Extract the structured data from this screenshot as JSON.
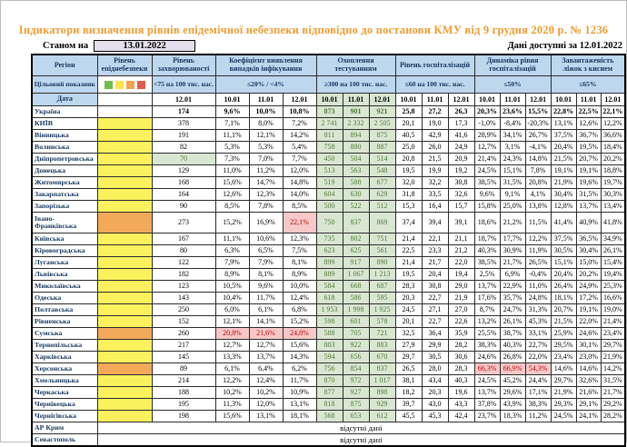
{
  "title": "Індикатори визначення рівнів епідемічної небезпеки відповідно до постанови КМУ від 9 грудня 2020 р. № 1236",
  "status": {
    "label": "Станом на",
    "date": "13.01.2022"
  },
  "available_note": "Дані доступні за 12.01.2022",
  "colors": {
    "title_text": "#EE9C31",
    "header_bg": "#BDD7EE",
    "header_text": "#17365D",
    "level_yellow": "#FBF15C",
    "level_orange": "#F3A95A",
    "testing_bg": "#D9E7D2",
    "testing_text": "#4E7A3A",
    "alert_bg": "#F6C8C8",
    "alert_text": "#C00000",
    "date_box_bg": "#E4DFEC",
    "legend_swatches": [
      "#6FBE4B",
      "#FBE44D",
      "#F2A44E",
      "#DF5C51"
    ]
  },
  "table": {
    "corner": {
      "row1": "Регіон",
      "row2": "Цільовий показник",
      "row3": "Дата"
    },
    "no_data_text": "відсутні дані",
    "groups": [
      {
        "title": "Рівень епіднебезпеки",
        "threshold": "",
        "dates": [],
        "legend": true
      },
      {
        "title": "Рівень захворюваності",
        "threshold": "<75 на 100 тис. нас.",
        "dates": [
          "12.01"
        ]
      },
      {
        "title": "Коефіцієнт виявлення випадків інфікування",
        "threshold": "≤20% / <4%",
        "dates": [
          "10.01",
          "11.01",
          "12.01"
        ]
      },
      {
        "title": "Охоплення тестуванням",
        "threshold": "≥300 на 100 тис. нас.",
        "dates": [
          "10.01",
          "11.01",
          "12.01"
        ],
        "test": true
      },
      {
        "title": "Рівень госпіталізацій",
        "threshold": "≤60 на 100 тис. нас.",
        "dates": [
          "10.01",
          "11.01",
          "12.01"
        ]
      },
      {
        "title": "Динаміка рівня госпіталізацій",
        "threshold": "≤50%",
        "dates": [
          "10.01",
          "11.01",
          "12.01"
        ]
      },
      {
        "title": "Завантаженість ліжок з киснем",
        "threshold": "≤65%",
        "dates": [
          "10.01",
          "11.01",
          "12.01"
        ]
      }
    ],
    "rows": [
      {
        "region": "Україна",
        "level": "white",
        "bold": true,
        "inc": "174",
        "coef": [
          "9,6%",
          "10,0%",
          "10,8%"
        ],
        "test": [
          "873",
          "901",
          "921"
        ],
        "hosp": [
          "25,8",
          "27,2",
          "26,3"
        ],
        "dyn": [
          "20,3%",
          "23,6%",
          "15,5%"
        ],
        "bed": [
          "22,8%",
          "22,5%",
          "22,1%"
        ]
      },
      {
        "region": "КИЇВ",
        "level": "yellow",
        "inc": "378",
        "coef": [
          "7,1%",
          "8,0%",
          "7,2%"
        ],
        "test": [
          "2 741",
          "2 332",
          "2 505"
        ],
        "hosp": [
          "20,1",
          "19,0",
          "17,3"
        ],
        "dyn": [
          "-1,0%",
          "-8,4%",
          "-20,3%"
        ],
        "bed": [
          "13,1%",
          "12,6%",
          "12,2%"
        ]
      },
      {
        "region": "Вінницька",
        "level": "yellow",
        "inc": "191",
        "coef": [
          "11,1%",
          "12,1%",
          "14,2%"
        ],
        "test": [
          "811",
          "894",
          "875"
        ],
        "hosp": [
          "40,5",
          "42,9",
          "41,6"
        ],
        "dyn": [
          "28,9%",
          "34,1%",
          "26,7%"
        ],
        "bed": [
          "37,5%",
          "36,7%",
          "36,6%"
        ]
      },
      {
        "region": "Волинська",
        "level": "yellow",
        "inc": "82",
        "coef": [
          "5,3%",
          "5,3%",
          "5,4%"
        ],
        "test": [
          "758",
          "880",
          "887"
        ],
        "hosp": [
          "25,0",
          "26,0",
          "24,9"
        ],
        "dyn": [
          "12,7%",
          "3,1%",
          "-4,1%"
        ],
        "bed": [
          "20,4%",
          "19,5%",
          "18,4%"
        ]
      },
      {
        "region": "Дніпропетровська",
        "level": "yellow",
        "inc": "70",
        "inc_hl": true,
        "coef": [
          "7,3%",
          "7,0%",
          "7,7%"
        ],
        "test": [
          "450",
          "504",
          "514"
        ],
        "hosp": [
          "20,8",
          "21,5",
          "20,9"
        ],
        "dyn": [
          "21,4%",
          "24,3%",
          "14,8%"
        ],
        "bed": [
          "21,5%",
          "20,7%",
          "20,2%"
        ]
      },
      {
        "region": "Донецька",
        "level": "yellow",
        "inc": "129",
        "coef": [
          "11,0%",
          "11,2%",
          "12,0%"
        ],
        "test": [
          "513",
          "563",
          "548"
        ],
        "hosp": [
          "19,5",
          "19,9",
          "19,2"
        ],
        "dyn": [
          "24,5%",
          "15,1%",
          "7,8%"
        ],
        "bed": [
          "19,1%",
          "19,1%",
          "18,8%"
        ]
      },
      {
        "region": "Житомирська",
        "level": "yellow",
        "inc": "168",
        "coef": [
          "15,6%",
          "14,7%",
          "14,8%"
        ],
        "test": [
          "519",
          "588",
          "677"
        ],
        "hosp": [
          "32,0",
          "32,2",
          "30,8"
        ],
        "dyn": [
          "38,5%",
          "31,5%",
          "20,8%"
        ],
        "bed": [
          "21,9%",
          "19,6%",
          "19,7%"
        ]
      },
      {
        "region": "Закарпатська",
        "level": "yellow",
        "inc": "164",
        "coef": [
          "12,6%",
          "12,3%",
          "14,0%"
        ],
        "test": [
          "604",
          "630",
          "629"
        ],
        "hosp": [
          "31,8",
          "33,5",
          "32,6"
        ],
        "dyn": [
          "9,6%",
          "9,1%",
          "4,1%"
        ],
        "bed": [
          "30,4%",
          "31,5%",
          "30,3%"
        ]
      },
      {
        "region": "Запорізька",
        "level": "yellow",
        "inc": "90",
        "coef": [
          "8,5%",
          "7,8%",
          "8,5%"
        ],
        "test": [
          "500",
          "522",
          "512"
        ],
        "hosp": [
          "15,3",
          "16,4",
          "15,7"
        ],
        "dyn": [
          "15,8%",
          "25,0%",
          "13,8%"
        ],
        "bed": [
          "12,8%",
          "13,7%",
          "13,4%"
        ]
      },
      {
        "region": "Івано-Франківська",
        "level": "orange",
        "tall": true,
        "inc": "273",
        "coef": [
          "15,2%",
          "16,9%",
          "22,1%"
        ],
        "coef_hl": [
          0,
          0,
          1
        ],
        "test": [
          "750",
          "837",
          "869"
        ],
        "hosp": [
          "37,4",
          "39,4",
          "39,1"
        ],
        "dyn": [
          "18,6%",
          "21,2%",
          "11,5%"
        ],
        "bed": [
          "41,4%",
          "40,9%",
          "41,8%"
        ]
      },
      {
        "region": "Київська",
        "level": "yellow",
        "inc": "167",
        "coef": [
          "11,1%",
          "10,6%",
          "12,3%"
        ],
        "test": [
          "735",
          "802",
          "751"
        ],
        "hosp": [
          "21,4",
          "22,1",
          "21,1"
        ],
        "dyn": [
          "18,7%",
          "17,7%",
          "12,2%"
        ],
        "bed": [
          "37,5%",
          "36,5%",
          "34,9%"
        ]
      },
      {
        "region": "Кіровоградська",
        "level": "yellow",
        "inc": "80",
        "coef": [
          "6,3%",
          "6,5%",
          "7,5%"
        ],
        "test": [
          "623",
          "625",
          "561"
        ],
        "hosp": [
          "22,5",
          "23,3",
          "21,2"
        ],
        "dyn": [
          "40,3%",
          "30,9%",
          "11,9%"
        ],
        "bed": [
          "30,5%",
          "30,4%",
          "26,1%"
        ]
      },
      {
        "region": "Луганська",
        "level": "yellow",
        "inc": "122",
        "coef": [
          "7,9%",
          "7,9%",
          "8,1%"
        ],
        "test": [
          "899",
          "917",
          "890"
        ],
        "hosp": [
          "21,4",
          "21,7",
          "22,0"
        ],
        "dyn": [
          "38,5%",
          "21,7%",
          "26,5%"
        ],
        "bed": [
          "15,1%",
          "15,0%",
          "15,4%"
        ]
      },
      {
        "region": "Львівська",
        "level": "yellow",
        "inc": "182",
        "coef": [
          "8,9%",
          "8,1%",
          "8,9%"
        ],
        "test": [
          "889",
          "1 067",
          "1 213"
        ],
        "hosp": [
          "19,5",
          "20,4",
          "19,4"
        ],
        "dyn": [
          "2,5%",
          "6,9%",
          "-0,4%"
        ],
        "bed": [
          "20,4%",
          "20,2%",
          "19,4%"
        ]
      },
      {
        "region": "Миколаївська",
        "level": "yellow",
        "inc": "123",
        "coef": [
          "10,5%",
          "9,6%",
          "10,0%"
        ],
        "test": [
          "584",
          "668",
          "687"
        ],
        "hosp": [
          "28,3",
          "30,8",
          "29,0"
        ],
        "dyn": [
          "13,7%",
          "22,9%",
          "11,0%"
        ],
        "bed": [
          "26,4%",
          "24,9%",
          "25,3%"
        ]
      },
      {
        "region": "Одеська",
        "level": "yellow",
        "inc": "143",
        "coef": [
          "10,4%",
          "11,7%",
          "12,4%"
        ],
        "test": [
          "618",
          "586",
          "595"
        ],
        "hosp": [
          "20,3",
          "22,7",
          "21,9"
        ],
        "dyn": [
          "17,6%",
          "35,7%",
          "24,8%"
        ],
        "bed": [
          "18,1%",
          "17,2%",
          "16,6%"
        ]
      },
      {
        "region": "Полтавська",
        "level": "yellow",
        "inc": "250",
        "coef": [
          "6,0%",
          "6,1%",
          "6,8%"
        ],
        "test": [
          "1 953",
          "1 998",
          "1 925"
        ],
        "hosp": [
          "24,5",
          "27,1",
          "27,0"
        ],
        "dyn": [
          "8,7%",
          "24,7%",
          "31,3%"
        ],
        "bed": [
          "20,7%",
          "19,1%",
          "19,0%"
        ]
      },
      {
        "region": "Рівненська",
        "level": "yellow",
        "inc": "152",
        "coef": [
          "12,1%",
          "14,1%",
          "15,2%"
        ],
        "test": [
          "598",
          "601",
          "578"
        ],
        "hosp": [
          "20,1",
          "22,7",
          "22,6"
        ],
        "dyn": [
          "13,2%",
          "26,1%",
          "45,3%"
        ],
        "bed": [
          "21,5%",
          "22,0%",
          "21,4%"
        ]
      },
      {
        "region": "Сумська",
        "level": "orange",
        "inc": "260",
        "coef": [
          "20,8%",
          "21,6%",
          "24,8%"
        ],
        "coef_hl": [
          1,
          1,
          1
        ],
        "test": [
          "588",
          "705",
          "721"
        ],
        "hosp": [
          "32,5",
          "36,4",
          "35,9"
        ],
        "dyn": [
          "25,5%",
          "38,7%",
          "33,1%"
        ],
        "bed": [
          "25,9%",
          "24,6%",
          "23,4%"
        ]
      },
      {
        "region": "Тернопільська",
        "level": "yellow",
        "inc": "217",
        "coef": [
          "12,7%",
          "12,7%",
          "15,6%"
        ],
        "test": [
          "803",
          "922",
          "883"
        ],
        "hosp": [
          "27,9",
          "29,9",
          "28,2"
        ],
        "dyn": [
          "38,3%",
          "40,3%",
          "22,7%"
        ],
        "bed": [
          "29,5%",
          "30,1%",
          "29,7%"
        ]
      },
      {
        "region": "Харківська",
        "level": "yellow",
        "inc": "145",
        "coef": [
          "13,3%",
          "13,7%",
          "14,3%"
        ],
        "test": [
          "594",
          "656",
          "670"
        ],
        "hosp": [
          "29,7",
          "30,5",
          "30,6"
        ],
        "dyn": [
          "24,6%",
          "26,8%",
          "22,0%"
        ],
        "bed": [
          "23,4%",
          "23,0%",
          "21,9%"
        ]
      },
      {
        "region": "Херсонська",
        "level": "orange",
        "inc": "89",
        "coef": [
          "6,1%",
          "6,4%",
          "6,2%"
        ],
        "test": [
          "756",
          "854",
          "837"
        ],
        "hosp": [
          "26,5",
          "28,0",
          "28,3"
        ],
        "dyn": [
          "66,3%",
          "66,9%",
          "54,3%"
        ],
        "dyn_hl": [
          1,
          1,
          1
        ],
        "bed": [
          "14,6%",
          "14,6%",
          "14,2%"
        ]
      },
      {
        "region": "Хмельницька",
        "level": "yellow",
        "inc": "214",
        "coef": [
          "12,2%",
          "12,4%",
          "11,7%"
        ],
        "test": [
          "870",
          "972",
          "1 017"
        ],
        "hosp": [
          "38,1",
          "43,4",
          "40,3"
        ],
        "dyn": [
          "24,5%",
          "45,2%",
          "24,4%"
        ],
        "bed": [
          "29,7%",
          "32,6%",
          "31,5%"
        ]
      },
      {
        "region": "Черкаська",
        "level": "yellow",
        "inc": "188",
        "coef": [
          "10,2%",
          "10,2%",
          "10,9%"
        ],
        "test": [
          "877",
          "927",
          "898"
        ],
        "hosp": [
          "18,2",
          "20,3",
          "19,6"
        ],
        "dyn": [
          "13,7%",
          "29,6%",
          "17,1%"
        ],
        "bed": [
          "21,9%",
          "21,6%",
          "21,7%"
        ]
      },
      {
        "region": "Чернівецька",
        "level": "yellow",
        "inc": "195",
        "coef": [
          "11,3%",
          "12,0%",
          "13,1%"
        ],
        "test": [
          "818",
          "875",
          "929"
        ],
        "hosp": [
          "39,7",
          "43,0",
          "43,3"
        ],
        "dyn": [
          "37,8%",
          "43,9%",
          "38,3%"
        ],
        "bed": [
          "29,3%",
          "29,1%",
          "29,2%"
        ]
      },
      {
        "region": "Чернігівська",
        "level": "yellow",
        "inc": "198",
        "coef": [
          "15,6%",
          "13,1%",
          "18,1%"
        ],
        "test": [
          "568",
          "653",
          "612"
        ],
        "hosp": [
          "45,5",
          "45,3",
          "42,4"
        ],
        "dyn": [
          "23,7%",
          "18,3%",
          "11,2%"
        ],
        "bed": [
          "24,5%",
          "24,1%",
          "28,2%"
        ]
      },
      {
        "region": "АР Крим",
        "no_data": true
      },
      {
        "region": "Севастополь",
        "no_data": true
      }
    ]
  }
}
